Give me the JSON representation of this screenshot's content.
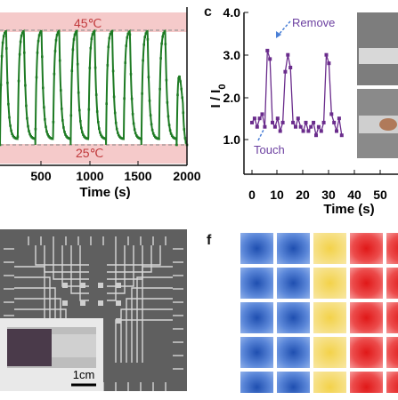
{
  "panel_b": {
    "hi_label": "45℃",
    "lo_label": "25℃",
    "xlabel": "Time (s)",
    "x_ticks": [
      "500",
      "1000",
      "1500",
      "2000"
    ]
  },
  "panel_c": {
    "letter": "c",
    "ylabel": "I / I",
    "ylabel_sub": "0",
    "xlabel": "Time (s)",
    "y_ticks": [
      "1.0",
      "2.0",
      "3.0",
      "4.0"
    ],
    "x_ticks": [
      "0",
      "10",
      "20",
      "30",
      "40",
      "50"
    ],
    "remove_label": "Remove",
    "touch_label": "Touch"
  },
  "panel_e": {
    "scale_label": "1cm"
  },
  "panel_f": {
    "letter": "f"
  },
  "colors": {
    "curve_green": "#1e7b24",
    "band_pink": "#f5caca",
    "series_purple": "#6a2c8c",
    "label_red": "#c0393b",
    "label_purple": "#6b3fa0"
  },
  "chart_data": [
    {
      "type": "line",
      "xlabel": "Time (s)",
      "ylabel": "",
      "xlim": [
        0,
        2000
      ],
      "annotations": [
        "45℃",
        "25℃"
      ],
      "note": "Periodic heating/cooling cycles between 25℃ and 45℃",
      "series": [
        {
          "x": [
            0,
            100,
            200,
            300,
            400,
            500,
            600,
            700,
            800,
            900,
            1000,
            1100,
            1200,
            1300,
            1400,
            1500,
            1600,
            1700,
            1800,
            1900,
            2000
          ],
          "values": [
            45,
            28,
            45,
            28,
            45,
            28,
            45,
            28,
            45,
            28,
            45,
            28,
            45,
            28,
            45,
            28,
            45,
            28,
            45,
            30,
            26
          ]
        }
      ]
    },
    {
      "type": "line",
      "xlabel": "Time (s)",
      "ylabel": "I / I0",
      "xlim": [
        0,
        55
      ],
      "ylim": [
        0.8,
        4.0
      ],
      "annotations": [
        "Remove",
        "Touch"
      ],
      "series": [
        {
          "x": [
            0,
            1,
            2,
            3,
            4,
            5,
            6,
            7,
            8,
            9,
            10,
            11,
            12,
            13,
            14,
            15,
            16,
            17,
            18,
            19,
            20,
            21,
            22,
            23,
            24,
            25,
            26,
            27,
            28,
            29,
            30,
            31,
            32,
            33,
            34,
            35
          ],
          "values": [
            1.4,
            1.5,
            1.3,
            1.5,
            1.6,
            1.3,
            3.1,
            2.9,
            1.4,
            1.3,
            1.5,
            1.2,
            1.4,
            2.6,
            3.0,
            2.7,
            1.4,
            1.3,
            1.5,
            1.3,
            1.2,
            1.4,
            1.2,
            1.3,
            1.4,
            1.1,
            1.3,
            1.2,
            1.4,
            3.0,
            2.8,
            1.6,
            1.4,
            1.2,
            1.5,
            1.1
          ]
        }
      ]
    }
  ]
}
